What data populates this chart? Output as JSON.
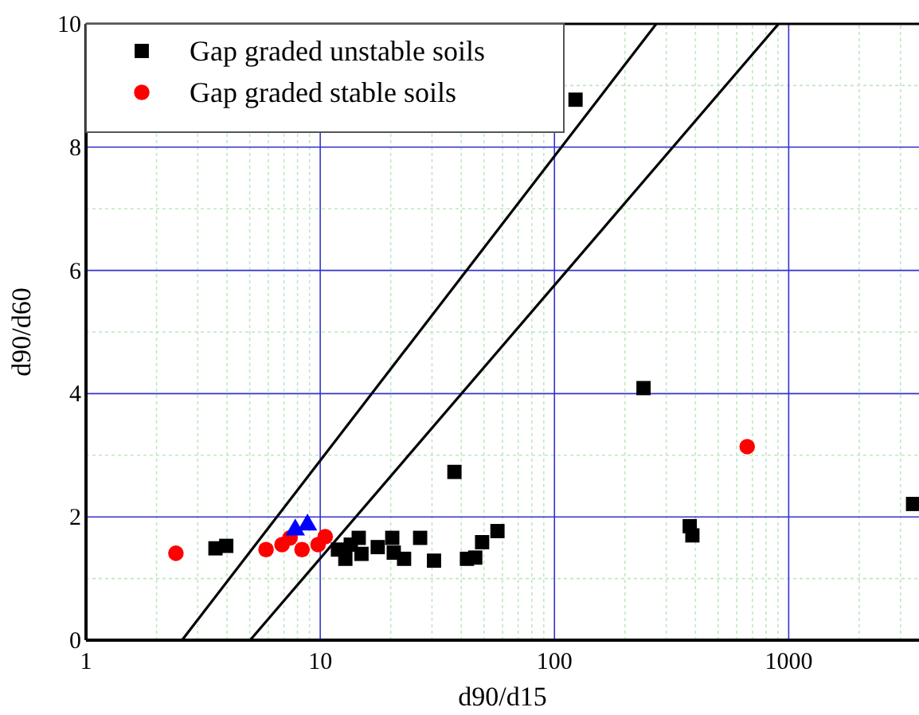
{
  "chart_data": {
    "type": "scatter",
    "xlabel": "d90/d15",
    "ylabel": "d90/d60",
    "log": "x",
    "xlim": [
      1,
      3600
    ],
    "xticks": [
      1,
      {
        "value": 2,
        "label": null
      },
      {
        "value": 3,
        "label": null
      },
      {
        "value": 4,
        "label": null
      },
      {
        "value": 5,
        "label": null
      },
      {
        "value": 6,
        "label": null
      },
      {
        "value": 7,
        "label": null
      },
      {
        "value": 8,
        "label": null
      },
      {
        "value": 9,
        "label": null
      },
      10,
      {
        "value": 20,
        "label": null
      },
      {
        "value": 30,
        "label": null
      },
      {
        "value": 40,
        "label": null
      },
      {
        "value": 50,
        "label": null
      },
      {
        "value": 60,
        "label": null
      },
      {
        "value": 70,
        "label": null
      },
      {
        "value": 80,
        "label": null
      },
      {
        "value": 90,
        "label": null
      },
      100,
      {
        "value": 200,
        "label": null
      },
      {
        "value": 300,
        "label": null
      },
      {
        "value": 400,
        "label": null
      },
      {
        "value": 500,
        "label": null
      },
      {
        "value": 600,
        "label": null
      },
      {
        "value": 700,
        "label": null
      },
      {
        "value": 800,
        "label": null
      },
      {
        "value": 900,
        "label": null
      },
      1000,
      {
        "value": 2000,
        "label": null
      },
      {
        "value": 3000,
        "label": null
      }
    ],
    "ylim": [
      0,
      10
    ],
    "yticks": [
      0,
      {
        "value": 1,
        "label": null
      },
      2,
      {
        "value": 3,
        "label": null
      },
      4,
      {
        "value": 5,
        "label": null
      },
      6,
      {
        "value": 7,
        "label": null
      },
      8,
      {
        "value": 9,
        "label": null
      },
      10
    ],
    "grid": true,
    "legend": "top left",
    "series": [
      {
        "name": "Gap graded unstable soils",
        "color": "#000000",
        "marker": "square",
        "x": [
          123,
          240,
          37.4,
          378,
          388,
          3.57,
          3.97,
          11.9,
          12.8,
          14.6,
          15.0,
          13.5,
          17.6,
          20.3,
          20.6,
          22.8,
          26.7,
          30.6,
          42.3,
          45.9,
          49.1,
          57.1,
          3396
        ],
        "values": [
          8.77,
          4.09,
          2.73,
          1.85,
          1.7,
          1.49,
          1.53,
          1.47,
          1.32,
          1.66,
          1.4,
          1.55,
          1.51,
          1.66,
          1.42,
          1.32,
          1.66,
          1.29,
          1.32,
          1.34,
          1.59,
          1.77,
          2.21
        ]
      },
      {
        "name": "Gap graded stable soils",
        "color": "#ff0000",
        "marker": "circle",
        "x": [
          2.42,
          5.87,
          6.87,
          7.43,
          8.36,
          9.79,
          10.5,
          665
        ],
        "values": [
          1.41,
          1.47,
          1.55,
          1.66,
          1.47,
          1.55,
          1.68,
          3.14
        ]
      },
      {
        "color": "#0000ff",
        "marker": "triangle",
        "x": [
          7.82,
          8.82
        ],
        "values": [
          1.79,
          1.87
        ]
      },
      {
        "type": "line",
        "color": "#000000",
        "marker": "none",
        "x": [
          2.57,
          272
        ],
        "values": [
          0,
          10
        ]
      },
      {
        "type": "line",
        "color": "#000000",
        "marker": "none",
        "x": [
          5.02,
          905
        ],
        "values": [
          0,
          10
        ]
      }
    ]
  }
}
